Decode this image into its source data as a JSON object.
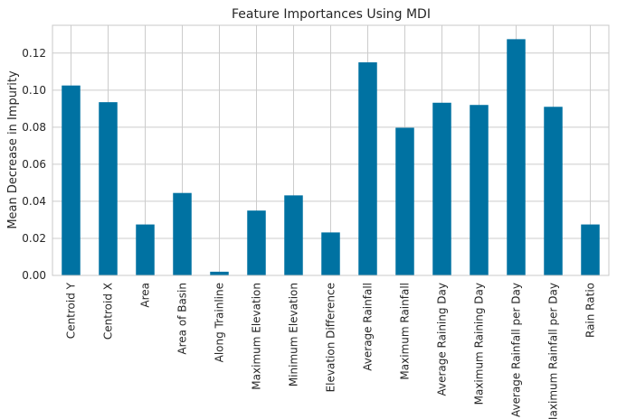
{
  "chart_data": {
    "type": "bar",
    "title": "Feature Importances Using MDI",
    "xlabel": "",
    "ylabel": "Mean Decrease in Impurity",
    "categories": [
      "Centroid Y",
      "Centroid X",
      "Area",
      "Area of Basin",
      "Along Trainline",
      "Maximum Elevation",
      "Minimum Elevation",
      "Elevation Difference",
      "Average Rainfall",
      "Maximum Rainfall",
      "Average Raining Day",
      "Maximum Raining Day",
      "Average Rainfall per Day",
      "Maximum Rainfall per Day",
      "Rain Ratio"
    ],
    "values": [
      0.1025,
      0.0935,
      0.0275,
      0.0445,
      0.002,
      0.035,
      0.0432,
      0.0232,
      0.115,
      0.0797,
      0.0932,
      0.092,
      0.1275,
      0.091,
      0.0275
    ],
    "ylim": [
      0,
      0.135
    ],
    "yticks": [
      "0.00",
      "0.02",
      "0.04",
      "0.06",
      "0.08",
      "0.10",
      "0.12"
    ],
    "grid": true,
    "bar_color": "#0072a2",
    "grid_color": "#cccccc",
    "frame_color": "#c8c8c8"
  }
}
